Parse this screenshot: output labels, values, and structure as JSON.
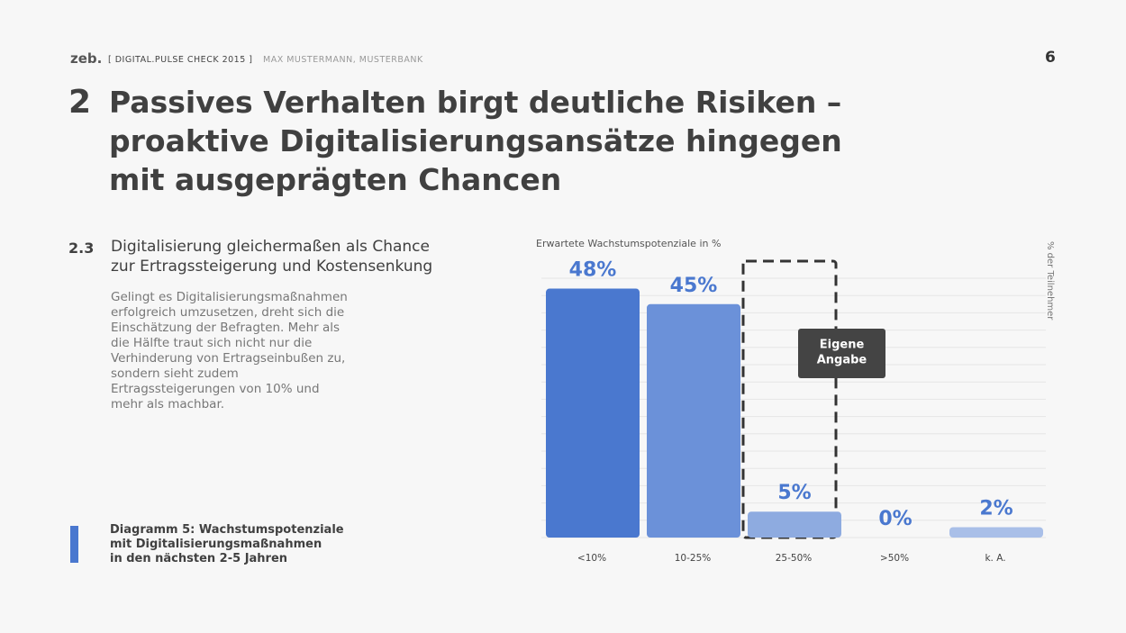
{
  "header": {
    "brand": "zeb.",
    "report": "[ DIGITAL.PULSE CHECK 2015 ]",
    "author": "MAX MUSTERMANN, MUSTERBANK",
    "page": "6"
  },
  "section": {
    "number": "2",
    "title_lines": [
      "Passives Verhalten birgt deutliche Risiken –",
      "proaktive Digitalisierungsansätze hingegen",
      "mit ausgeprägten Chancen"
    ]
  },
  "subsection": {
    "number": "2.3",
    "title_lines": [
      "Digitalisierung gleichermaßen als Chance",
      "zur Ertragssteigerung und Kostensenkung"
    ],
    "body_lines": [
      "Gelingt es Digitalisierungsmaßnahmen",
      "erfolgreich umzusetzen, dreht sich die",
      "Einschätzung der Befragten. Mehr als",
      "die Hälfte traut sich nicht nur die",
      "Verhinderung von Ertragseinbußen zu,",
      "sondern sieht zudem",
      "Ertragssteigerungen von 10% und",
      "mehr als machbar."
    ]
  },
  "caption_lines": [
    "Diagramm 5: Wachstumspotenziale",
    "mit Digitalisierungsmaßnahmen",
    "in den nächsten 2-5 Jahren"
  ],
  "chart_data": {
    "type": "bar",
    "title": "Erwartete Wachstumspotenziale in %",
    "y_label": "% der Teilnehmer",
    "categories": [
      "<10%",
      "10-25%",
      "25-50%",
      ">50%",
      "k. A."
    ],
    "values": [
      48,
      45,
      5,
      0,
      2
    ],
    "value_labels": [
      "48%",
      "45%",
      "5%",
      "0%",
      "2%"
    ],
    "colors": [
      "#4a78cf",
      "#6b91d9",
      "#8eabe0",
      "#c9d5ef",
      "#a9bfe8"
    ],
    "ylim": [
      0,
      50
    ],
    "grid": true,
    "annotation": {
      "text_lines": [
        "Eigene",
        "Angabe"
      ],
      "category_index": 2
    }
  }
}
